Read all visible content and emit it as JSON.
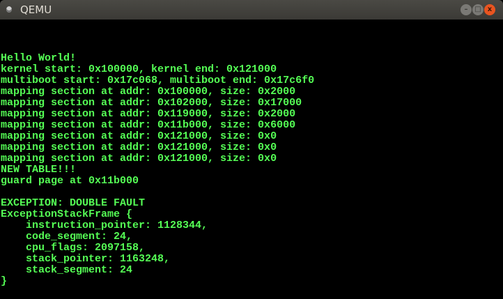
{
  "window": {
    "title": "QEMU",
    "icon": "qemu-app-icon",
    "buttons": {
      "minimize": "–",
      "maximize": "□",
      "close": "x"
    }
  },
  "colors": {
    "terminal_text": "#55ff55",
    "background": "#000000",
    "close_button": "#e95420"
  },
  "terminal": {
    "lines": [
      "Hello World!",
      "kernel start: 0x100000, kernel end: 0x121000",
      "multiboot start: 0x17c068, multiboot end: 0x17c6f0",
      "mapping section at addr: 0x100000, size: 0x2000",
      "mapping section at addr: 0x102000, size: 0x17000",
      "mapping section at addr: 0x119000, size: 0x2000",
      "mapping section at addr: 0x11b000, size: 0x6000",
      "mapping section at addr: 0x121000, size: 0x0",
      "mapping section at addr: 0x121000, size: 0x0",
      "mapping section at addr: 0x121000, size: 0x0",
      "NEW TABLE!!!",
      "guard page at 0x11b000",
      "",
      "EXCEPTION: DOUBLE FAULT",
      "ExceptionStackFrame {",
      "    instruction_pointer: 1128344,",
      "    code_segment: 24,",
      "    cpu_flags: 2097158,",
      "    stack_pointer: 1163248,",
      "    stack_segment: 24",
      "}"
    ]
  }
}
